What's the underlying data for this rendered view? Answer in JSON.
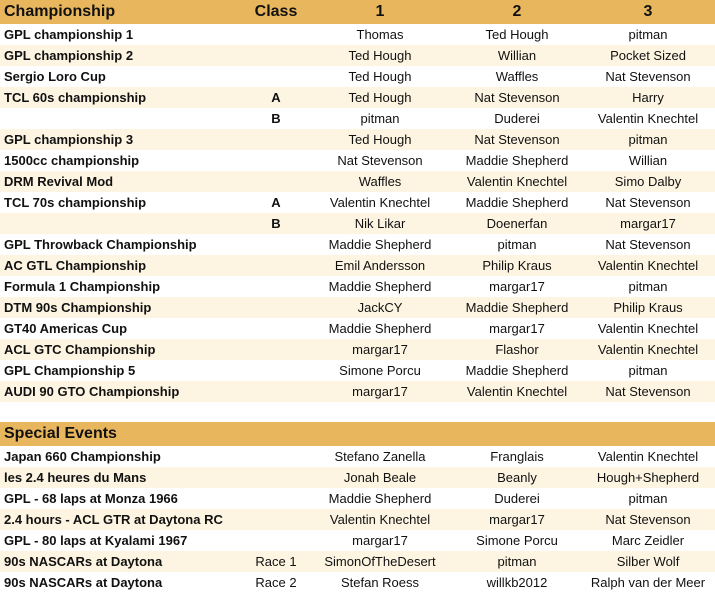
{
  "header": {
    "championship": "Championship",
    "class": "Class",
    "p1": "1",
    "p2": "2",
    "p3": "3"
  },
  "colors": {
    "header": "#e8b65c",
    "stripe": "#fdf5e2"
  },
  "rows": [
    {
      "name": "GPL championship 1",
      "class": "",
      "p1": "Thomas",
      "p2": "Ted Hough",
      "p3": "pitman"
    },
    {
      "name": "GPL championship 2",
      "class": "",
      "p1": "Ted Hough",
      "p2": "Willian",
      "p3": "Pocket Sized"
    },
    {
      "name": "Sergio Loro Cup",
      "class": "",
      "p1": "Ted Hough",
      "p2": "Waffles",
      "p3": "Nat Stevenson"
    },
    {
      "name": "TCL 60s championship",
      "class": "A",
      "p1": "Ted Hough",
      "p2": "Nat Stevenson",
      "p3": "Harry"
    },
    {
      "name": "",
      "class": "B",
      "p1": "pitman",
      "p2": "Duderei",
      "p3": "Valentin Knechtel"
    },
    {
      "name": "GPL championship 3",
      "class": "",
      "p1": "Ted Hough",
      "p2": "Nat Stevenson",
      "p3": "pitman"
    },
    {
      "name": "1500cc championship",
      "class": "",
      "p1": "Nat Stevenson",
      "p2": "Maddie Shepherd",
      "p3": "Willian"
    },
    {
      "name": "DRM Revival Mod",
      "class": "",
      "p1": "Waffles",
      "p2": "Valentin Knechtel",
      "p3": "Simo Dalby"
    },
    {
      "name": "TCL 70s championship",
      "class": "A",
      "p1": "Valentin Knechtel",
      "p2": "Maddie Shepherd",
      "p3": "Nat Stevenson"
    },
    {
      "name": "",
      "class": "B",
      "p1": "Nik Likar",
      "p2": "Doenerfan",
      "p3": "margar17"
    },
    {
      "name": "GPL Throwback Championship",
      "class": "",
      "p1": "Maddie Shepherd",
      "p2": "pitman",
      "p3": "Nat Stevenson"
    },
    {
      "name": "AC GTL Championship",
      "class": "",
      "p1": "Emil Andersson",
      "p2": "Philip Kraus",
      "p3": "Valentin Knechtel"
    },
    {
      "name": "Formula 1 Championship",
      "class": "",
      "p1": "Maddie Shepherd",
      "p2": "margar17",
      "p3": "pitman"
    },
    {
      "name": "DTM 90s Championship",
      "class": "",
      "p1": "JackCY",
      "p2": "Maddie Shepherd",
      "p3": "Philip Kraus"
    },
    {
      "name": "GT40 Americas Cup",
      "class": "",
      "p1": "Maddie Shepherd",
      "p2": "margar17",
      "p3": "Valentin Knechtel"
    },
    {
      "name": "ACL GTC Championship",
      "class": "",
      "p1": "margar17",
      "p2": "Flashor",
      "p3": "Valentin Knechtel"
    },
    {
      "name": "GPL Championship 5",
      "class": "",
      "p1": "Simone Porcu",
      "p2": "Maddie Shepherd",
      "p3": "pitman"
    },
    {
      "name": "AUDI 90 GTO Championship",
      "class": "",
      "p1": "margar17",
      "p2": "Valentin Knechtel",
      "p3": "Nat Stevenson"
    }
  ],
  "special": {
    "title": "Special Events",
    "rows": [
      {
        "name": "Japan 660 Championship",
        "class": "",
        "p1": "Stefano Zanella",
        "p2": "Franglais",
        "p3": "Valentin Knechtel"
      },
      {
        "name": "les 2.4 heures du Mans",
        "class": "",
        "p1": "Jonah Beale",
        "p2": "Beanly",
        "p3": "Hough+Shepherd"
      },
      {
        "name": "GPL - 68 laps at Monza 1966",
        "class": "",
        "p1": "Maddie Shepherd",
        "p2": "Duderei",
        "p3": "pitman"
      },
      {
        "name": "2.4 hours - ACL GTR at Daytona RC",
        "class": "",
        "p1": "Valentin Knechtel",
        "p2": "margar17",
        "p3": "Nat  Stevenson"
      },
      {
        "name": "GPL - 80 laps at Kyalami 1967",
        "class": "",
        "p1": "margar17",
        "p2": "Simone Porcu",
        "p3": "Marc Zeidler"
      },
      {
        "name": "90s NASCARs at Daytona",
        "class": "Race 1",
        "p1": "SimonOfTheDesert",
        "p2": "pitman",
        "p3": "Silber Wolf"
      },
      {
        "name": "90s NASCARs at Daytona",
        "class": "Race 2",
        "p1": "Stefan Roess",
        "p2": "willkb2012",
        "p3": "Ralph van der Meer"
      }
    ]
  }
}
